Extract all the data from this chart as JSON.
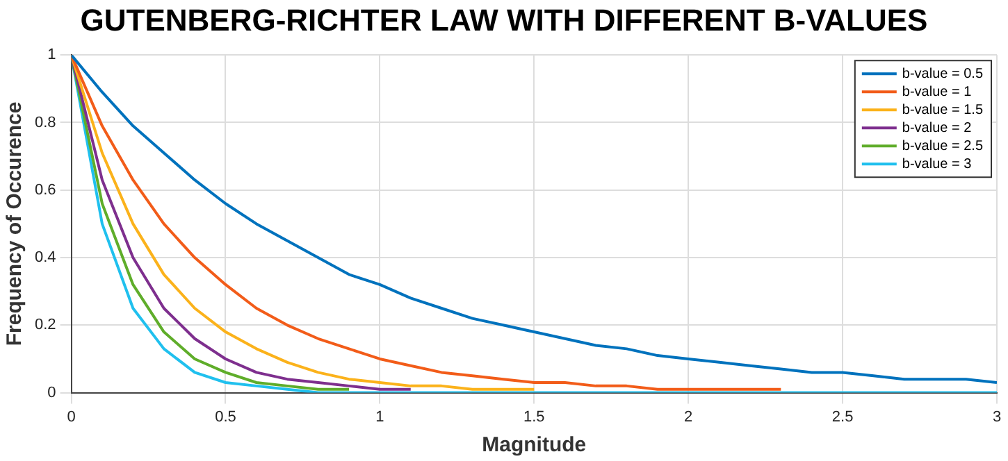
{
  "chart_data": {
    "type": "line",
    "title": "GUTENBERG-RICHTER LAW WITH DIFFERENT B-VALUES",
    "xlabel": "Magnitude",
    "ylabel": "Frequency of Occurence",
    "x": [
      0,
      0.1,
      0.2,
      0.3,
      0.4,
      0.5,
      0.6,
      0.7,
      0.8,
      0.9,
      1,
      1.1,
      1.2,
      1.3,
      1.4,
      1.5,
      1.6,
      1.7,
      1.8,
      1.9,
      2,
      2.1,
      2.2,
      2.3,
      2.4,
      2.5,
      2.6,
      2.7,
      2.8,
      2.9,
      3
    ],
    "series": [
      {
        "name": "b-value = 0.5",
        "color": "#0072bd",
        "values": [
          1,
          0.89,
          0.79,
          0.71,
          0.63,
          0.56,
          0.5,
          0.45,
          0.4,
          0.35,
          0.32,
          0.28,
          0.25,
          0.22,
          0.2,
          0.18,
          0.16,
          0.14,
          0.13,
          0.11,
          0.1,
          0.09,
          0.08,
          0.07,
          0.06,
          0.06,
          0.05,
          0.04,
          0.04,
          0.04,
          0.03
        ]
      },
      {
        "name": "b-value = 1",
        "color": "#f25c19",
        "values": [
          1,
          0.79,
          0.63,
          0.5,
          0.4,
          0.32,
          0.25,
          0.2,
          0.16,
          0.13,
          0.1,
          0.08,
          0.06,
          0.05,
          0.04,
          0.03,
          0.03,
          0.02,
          0.02,
          0.01,
          0.01,
          0.01,
          0.01,
          0.01,
          null,
          null,
          null,
          null,
          null,
          null,
          null
        ]
      },
      {
        "name": "b-value = 1.5",
        "color": "#fbb21b",
        "values": [
          1,
          0.71,
          0.5,
          0.35,
          0.25,
          0.18,
          0.13,
          0.09,
          0.06,
          0.04,
          0.03,
          0.02,
          0.02,
          0.01,
          0.01,
          0.01,
          null,
          null,
          null,
          null,
          null,
          null,
          null,
          null,
          null,
          null,
          null,
          null,
          null,
          null,
          null
        ]
      },
      {
        "name": "b-value = 2",
        "color": "#7e2f8e",
        "values": [
          1,
          0.63,
          0.4,
          0.25,
          0.16,
          0.1,
          0.06,
          0.04,
          0.03,
          0.02,
          0.01,
          0.01,
          null,
          null,
          null,
          null,
          null,
          null,
          null,
          null,
          null,
          null,
          null,
          null,
          null,
          null,
          null,
          null,
          null,
          null,
          null
        ]
      },
      {
        "name": "b-value = 2.5",
        "color": "#5fad2a",
        "values": [
          1,
          0.56,
          0.32,
          0.18,
          0.1,
          0.06,
          0.03,
          0.02,
          0.01,
          0.01,
          null,
          null,
          null,
          null,
          null,
          null,
          null,
          null,
          null,
          null,
          null,
          null,
          null,
          null,
          null,
          null,
          null,
          null,
          null,
          null,
          null
        ]
      },
      {
        "name": "b-value = 3",
        "color": "#20c0ee",
        "values": [
          1,
          0.5,
          0.25,
          0.13,
          0.06,
          0.03,
          0.02,
          0.01,
          0,
          0,
          0,
          0,
          0,
          0,
          0,
          0,
          0,
          0,
          0,
          0,
          0,
          0,
          0,
          0,
          0,
          0,
          0,
          0,
          0,
          0,
          0
        ]
      }
    ],
    "xlim": [
      0,
      3
    ],
    "xticks": [
      0,
      0.5,
      1,
      1.5,
      2,
      2.5,
      3
    ],
    "ylim": [
      0,
      1
    ],
    "yticks": [
      0,
      0.2,
      0.4,
      0.6,
      0.8,
      1
    ],
    "grid": true,
    "legend": "top right",
    "marker": "none",
    "line_style": "solid"
  }
}
